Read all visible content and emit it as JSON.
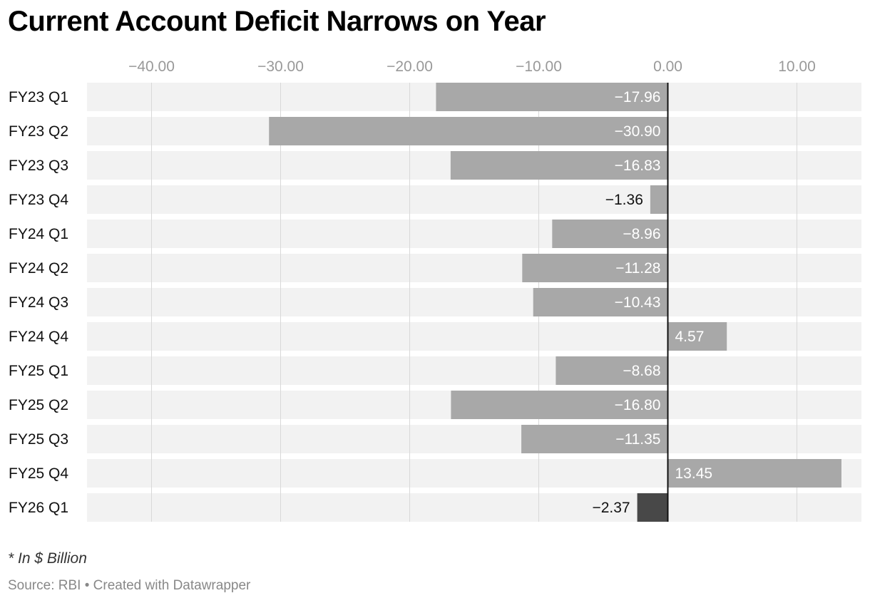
{
  "title": "Current Account Deficit Narrows on Year",
  "note": "* In $ Billion",
  "source": "Source: RBI • Created with Datawrapper",
  "colors": {
    "bar": "#a8a8a8",
    "highlight": "#484848",
    "band": "#f2f2f2",
    "grid": "#d8d8d8",
    "zero": "#111111",
    "tick": "#999999"
  },
  "chart_data": {
    "type": "bar",
    "orientation": "horizontal",
    "categories": [
      "FY23 Q1",
      "FY23 Q2",
      "FY23 Q3",
      "FY23 Q4",
      "FY24 Q1",
      "FY24 Q2",
      "FY24 Q3",
      "FY24 Q4",
      "FY25 Q1",
      "FY25 Q2",
      "FY25 Q3",
      "FY25 Q4",
      "FY26 Q1"
    ],
    "values": [
      -17.96,
      -30.9,
      -16.83,
      -1.36,
      -8.96,
      -11.28,
      -10.43,
      4.57,
      -8.68,
      -16.8,
      -11.35,
      13.45,
      -2.37
    ],
    "value_labels": [
      "−17.96",
      "−30.90",
      "−16.83",
      "−1.36",
      "−8.96",
      "−11.28",
      "−10.43",
      "4.57",
      "−8.68",
      "−16.80",
      "−11.35",
      "13.45",
      "−2.37"
    ],
    "highlight_index": 12,
    "xticks": [
      -40,
      -30,
      -20,
      -10,
      0,
      10
    ],
    "xtick_labels": [
      "−40.00",
      "−30.00",
      "−20.00",
      "−10.00",
      "0.00",
      "10.00"
    ],
    "xlim": [
      -45,
      15
    ],
    "grid": true
  }
}
